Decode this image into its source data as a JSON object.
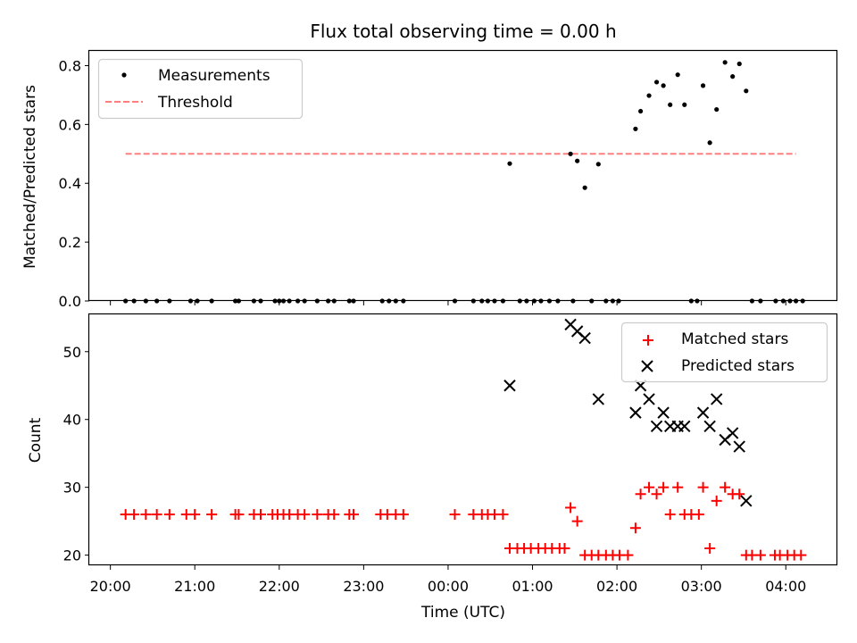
{
  "chart_data": [
    {
      "type": "scatter",
      "title": "Flux total observing time = 0.00 h",
      "ylabel": "Matched/Predicted stars",
      "ylim": [
        0,
        0.85
      ],
      "xlim": [
        -0.25,
        8.6
      ],
      "yticks": [
        0.0,
        0.2,
        0.4,
        0.6,
        0.8
      ],
      "ytick_labels": [
        "0.0",
        "0.2",
        "0.4",
        "0.6",
        "0.8"
      ],
      "legend_position": "top-left",
      "series": [
        {
          "name": "Measurements",
          "marker": "dot",
          "color": "#000000",
          "x": [
            0.18,
            0.28,
            0.42,
            0.55,
            0.7,
            0.95,
            1.03,
            1.2,
            1.48,
            1.52,
            1.7,
            1.78,
            1.95,
            2.0,
            2.05,
            2.12,
            2.22,
            2.3,
            2.45,
            2.58,
            2.65,
            2.83,
            2.88,
            3.22,
            3.3,
            3.38,
            3.47,
            4.08,
            4.3,
            4.4,
            4.47,
            4.55,
            4.65,
            4.85,
            4.93,
            5.02,
            5.1,
            5.2,
            5.3,
            5.48,
            5.7,
            5.87,
            5.95,
            6.02,
            6.88,
            6.95,
            7.6,
            7.7,
            7.88,
            7.97,
            8.05,
            8.12,
            8.2,
            4.73,
            5.45,
            5.53,
            5.62,
            5.78,
            6.22,
            6.28,
            6.38,
            6.47,
            6.55,
            6.63,
            6.72,
            6.8,
            7.02,
            7.1,
            7.18,
            7.28,
            7.37,
            7.45,
            7.53
          ],
          "y": [
            0,
            0,
            0,
            0,
            0,
            0,
            0,
            0,
            0,
            0,
            0,
            0,
            0,
            0,
            0,
            0,
            0,
            0,
            0,
            0,
            0,
            0,
            0,
            0,
            0,
            0,
            0,
            0,
            0,
            0,
            0,
            0,
            0,
            0,
            0,
            0,
            0,
            0,
            0,
            0,
            0,
            0,
            0,
            0,
            0,
            0,
            0,
            0,
            0,
            0,
            0,
            0,
            0,
            0.467,
            0.5,
            0.476,
            0.385,
            0.465,
            0.585,
            0.645,
            0.698,
            0.744,
            0.732,
            0.667,
            0.769,
            0.667,
            0.732,
            0.538,
            0.651,
            0.811,
            0.763,
            0.806,
            0.714
          ]
        },
        {
          "name": "Threshold",
          "line_style": "dashed",
          "color": "#ff7f7f",
          "x": [
            0.18,
            8.12
          ],
          "y": [
            0.5,
            0.5
          ]
        }
      ]
    },
    {
      "type": "scatter",
      "xlabel": "Time (UTC)",
      "ylabel": "Count",
      "ylim": [
        18.5,
        55.5
      ],
      "xlim": [
        -0.25,
        8.6
      ],
      "xticks": [
        0,
        1,
        2,
        3,
        4,
        5,
        6,
        7,
        8
      ],
      "xtick_labels": [
        "20:00",
        "21:00",
        "22:00",
        "23:00",
        "00:00",
        "01:00",
        "02:00",
        "03:00",
        "04:00"
      ],
      "yticks": [
        20,
        30,
        40,
        50
      ],
      "ytick_labels": [
        "20",
        "30",
        "40",
        "50"
      ],
      "legend_position": "top-right",
      "series": [
        {
          "name": "Matched stars",
          "marker": "plus",
          "color": "#ff0000",
          "x": [
            0.18,
            0.28,
            0.42,
            0.55,
            0.7,
            0.9,
            1.0,
            1.2,
            1.48,
            1.52,
            1.7,
            1.78,
            1.92,
            1.98,
            2.05,
            2.12,
            2.22,
            2.3,
            2.45,
            2.58,
            2.65,
            2.83,
            2.88,
            3.2,
            3.28,
            3.38,
            3.47,
            4.08,
            4.3,
            4.4,
            4.47,
            4.55,
            4.65,
            4.73,
            4.82,
            4.9,
            4.98,
            5.07,
            5.15,
            5.23,
            5.32,
            5.38,
            5.45,
            5.53,
            5.62,
            5.7,
            5.78,
            5.87,
            5.95,
            6.03,
            6.13,
            6.22,
            6.28,
            6.38,
            6.47,
            6.55,
            6.63,
            6.72,
            6.8,
            6.88,
            6.97,
            7.02,
            7.1,
            7.18,
            7.28,
            7.37,
            7.45,
            7.53,
            7.6,
            7.7,
            7.87,
            7.93,
            8.02,
            8.1,
            8.18
          ],
          "y": [
            26,
            26,
            26,
            26,
            26,
            26,
            26,
            26,
            26,
            26,
            26,
            26,
            26,
            26,
            26,
            26,
            26,
            26,
            26,
            26,
            26,
            26,
            26,
            26,
            26,
            26,
            26,
            26,
            26,
            26,
            26,
            26,
            26,
            21,
            21,
            21,
            21,
            21,
            21,
            21,
            21,
            21,
            27,
            25,
            20,
            20,
            20,
            20,
            20,
            20,
            20,
            24,
            29,
            30,
            29,
            30,
            26,
            30,
            26,
            26,
            26,
            30,
            21,
            28,
            30,
            29,
            29,
            20,
            20,
            20,
            20,
            20,
            20,
            20,
            20
          ]
        },
        {
          "name": "Predicted stars",
          "marker": "x",
          "color": "#000000",
          "x": [
            4.73,
            5.45,
            5.53,
            5.62,
            5.78,
            6.22,
            6.28,
            6.38,
            6.47,
            6.55,
            6.63,
            6.72,
            6.8,
            7.02,
            7.1,
            7.18,
            7.28,
            7.37,
            7.45,
            7.53
          ],
          "y": [
            45,
            54,
            53,
            52,
            43,
            41,
            45,
            43,
            39,
            41,
            39,
            39,
            39,
            41,
            39,
            43,
            37,
            38,
            36,
            28
          ]
        }
      ]
    }
  ]
}
